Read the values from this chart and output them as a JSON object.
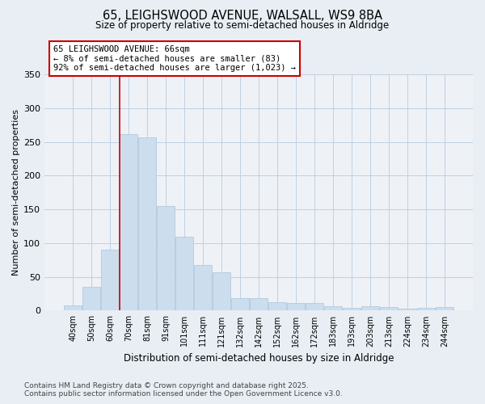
{
  "title_line1": "65, LEIGHSWOOD AVENUE, WALSALL, WS9 8BA",
  "title_line2": "Size of property relative to semi-detached houses in Aldridge",
  "xlabel": "Distribution of semi-detached houses by size in Aldridge",
  "ylabel": "Number of semi-detached properties",
  "categories": [
    "40sqm",
    "50sqm",
    "60sqm",
    "70sqm",
    "81sqm",
    "91sqm",
    "101sqm",
    "111sqm",
    "121sqm",
    "132sqm",
    "142sqm",
    "152sqm",
    "162sqm",
    "172sqm",
    "183sqm",
    "193sqm",
    "203sqm",
    "213sqm",
    "224sqm",
    "234sqm",
    "244sqm"
  ],
  "values": [
    8,
    35,
    90,
    262,
    257,
    155,
    110,
    67,
    57,
    18,
    18,
    13,
    11,
    11,
    6,
    4,
    7,
    5,
    3,
    4,
    5
  ],
  "bar_color": "#ccdded",
  "bar_edgecolor": "#aac4d8",
  "redline_index": 2,
  "annotation_title": "65 LEIGHSWOOD AVENUE: 66sqm",
  "annotation_line2": "← 8% of semi-detached houses are smaller (83)",
  "annotation_line3": "92% of semi-detached houses are larger (1,023) →",
  "annotation_box_facecolor": "#ffffff",
  "annotation_box_edgecolor": "#cc0000",
  "ylim": [
    0,
    350
  ],
  "yticks": [
    0,
    50,
    100,
    150,
    200,
    250,
    300,
    350
  ],
  "footer_line1": "Contains HM Land Registry data © Crown copyright and database right 2025.",
  "footer_line2": "Contains public sector information licensed under the Open Government Licence v3.0.",
  "background_color": "#e8eef4",
  "plot_bg_color": "#eef2f7",
  "grid_color": "#c0cfe0"
}
